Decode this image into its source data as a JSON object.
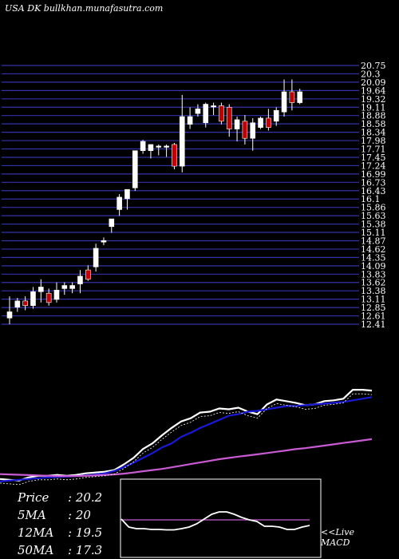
{
  "header": {
    "title": "USA DK bullkhan.munafasutra.com"
  },
  "colors": {
    "background": "#000000",
    "grid": "#3333aa",
    "up": "#ffffff",
    "down": "#c00000",
    "price_line": "#ffffff",
    "ma20": "#ffffff",
    "ma12": "#1a1ad6",
    "ma50": "#c85ad2",
    "macd_line": "#ffffff",
    "macd_signal": "#c85ad2"
  },
  "stats": [
    {
      "label": "Price",
      "value": ": 20.2"
    },
    {
      "label": "5MA",
      "value": ": 20"
    },
    {
      "label": "12MA",
      "value": ": 19.5"
    },
    {
      "label": "50MA",
      "value": ": 17.3"
    }
  ],
  "live": {
    "line1": "<<Live",
    "line2": "MACD"
  },
  "chart_data": [
    {
      "type": "candlestick",
      "title": "USA DK bullkhan.munafasutra.com",
      "ylim": [
        12.4,
        20.75
      ],
      "y_ticks": [
        20.75,
        20.3,
        20.09,
        19.64,
        19.32,
        19.11,
        18.88,
        18.58,
        18.34,
        17.98,
        17.71,
        17.45,
        17.24,
        16.99,
        16.73,
        16.43,
        16.1,
        15.86,
        15.63,
        15.38,
        15.11,
        14.87,
        14.62,
        14.35,
        14.09,
        13.83,
        13.62,
        13.38,
        13.11,
        12.85,
        12.61,
        12.41
      ],
      "candles": [
        {
          "o": 12.6,
          "h": 13.3,
          "l": 12.4,
          "c": 12.8
        },
        {
          "o": 12.95,
          "h": 13.25,
          "l": 12.8,
          "c": 13.15
        },
        {
          "o": 13.15,
          "h": 13.3,
          "l": 12.85,
          "c": 13.0
        },
        {
          "o": 13.0,
          "h": 13.6,
          "l": 12.9,
          "c": 13.45
        },
        {
          "o": 13.45,
          "h": 13.85,
          "l": 13.1,
          "c": 13.6
        },
        {
          "o": 13.4,
          "h": 13.55,
          "l": 13.0,
          "c": 13.1
        },
        {
          "o": 13.2,
          "h": 13.75,
          "l": 13.1,
          "c": 13.5
        },
        {
          "o": 13.55,
          "h": 13.75,
          "l": 13.35,
          "c": 13.65
        },
        {
          "o": 13.55,
          "h": 13.75,
          "l": 13.4,
          "c": 13.65
        },
        {
          "o": 13.7,
          "h": 14.15,
          "l": 13.4,
          "c": 13.95
        },
        {
          "o": 14.15,
          "h": 14.3,
          "l": 13.8,
          "c": 13.85
        },
        {
          "o": 14.25,
          "h": 15.0,
          "l": 14.1,
          "c": 14.85
        },
        {
          "o": 15.05,
          "h": 15.2,
          "l": 14.95,
          "c": 15.1
        },
        {
          "o": 15.55,
          "h": 15.8,
          "l": 15.35,
          "c": 15.8
        },
        {
          "o": 16.1,
          "h": 16.6,
          "l": 15.9,
          "c": 16.5
        },
        {
          "o": 16.45,
          "h": 16.75,
          "l": 16.1,
          "c": 16.75
        },
        {
          "o": 16.8,
          "h": 18.0,
          "l": 16.7,
          "c": 18.0
        },
        {
          "o": 18.0,
          "h": 18.35,
          "l": 17.9,
          "c": 18.3
        },
        {
          "o": 18.0,
          "h": 18.2,
          "l": 17.75,
          "c": 18.2
        },
        {
          "o": 18.15,
          "h": 18.2,
          "l": 17.85,
          "c": 18.15
        },
        {
          "o": 18.15,
          "h": 18.2,
          "l": 17.8,
          "c": 18.15
        },
        {
          "o": 18.2,
          "h": 18.25,
          "l": 17.4,
          "c": 17.5
        },
        {
          "o": 17.5,
          "h": 19.8,
          "l": 17.3,
          "c": 19.1
        },
        {
          "o": 18.85,
          "h": 19.4,
          "l": 18.7,
          "c": 19.1
        },
        {
          "o": 19.2,
          "h": 19.5,
          "l": 19.1,
          "c": 19.35
        },
        {
          "o": 18.9,
          "h": 19.55,
          "l": 18.75,
          "c": 19.5
        },
        {
          "o": 19.45,
          "h": 19.55,
          "l": 19.15,
          "c": 19.45
        },
        {
          "o": 19.45,
          "h": 19.55,
          "l": 18.85,
          "c": 18.95
        },
        {
          "o": 19.4,
          "h": 19.5,
          "l": 18.45,
          "c": 18.7
        },
        {
          "o": 18.7,
          "h": 19.1,
          "l": 18.3,
          "c": 19.0
        },
        {
          "o": 18.95,
          "h": 19.15,
          "l": 18.2,
          "c": 18.4
        },
        {
          "o": 18.4,
          "h": 19.05,
          "l": 18.0,
          "c": 18.9
        },
        {
          "o": 18.75,
          "h": 19.1,
          "l": 18.7,
          "c": 19.05
        },
        {
          "o": 19.05,
          "h": 19.35,
          "l": 18.65,
          "c": 18.75
        },
        {
          "o": 18.95,
          "h": 19.4,
          "l": 18.8,
          "c": 19.3
        },
        {
          "o": 19.25,
          "h": 20.3,
          "l": 19.1,
          "c": 19.9
        },
        {
          "o": 19.9,
          "h": 20.3,
          "l": 19.3,
          "c": 19.55
        },
        {
          "o": 19.55,
          "h": 20.0,
          "l": 19.5,
          "c": 19.9
        }
      ]
    },
    {
      "type": "line",
      "series": [
        {
          "values": [
            14.6,
            14.55,
            14.5,
            14.7,
            14.8,
            14.8,
            14.85,
            14.8,
            14.85,
            14.95,
            15.0,
            15.05,
            15.15,
            15.5,
            15.9,
            16.45,
            16.8,
            17.3,
            17.75,
            18.15,
            18.35,
            18.7,
            18.75,
            18.95,
            18.9,
            19.0,
            18.75,
            18.6,
            19.2,
            19.5,
            19.4,
            19.3,
            19.15,
            19.2,
            19.4,
            19.45,
            19.55,
            20.1,
            20.1,
            20.05
          ]
        },
        {
          "values": [
            14.45,
            14.5,
            14.55,
            14.6,
            14.65,
            14.7,
            14.72,
            14.75,
            14.78,
            14.82,
            14.88,
            14.95,
            15.1,
            15.35,
            15.6,
            15.9,
            16.2,
            16.55,
            16.8,
            17.2,
            17.45,
            17.75,
            18.0,
            18.25,
            18.5,
            18.6,
            18.75,
            18.8,
            18.9,
            19.0,
            19.1,
            19.1,
            19.15,
            19.2,
            19.25,
            19.3,
            19.35,
            19.45,
            19.55,
            19.65
          ]
        },
        {
          "values": [
            14.9,
            14.88,
            14.86,
            14.84,
            14.82,
            14.8,
            14.78,
            14.78,
            14.78,
            14.8,
            14.82,
            14.85,
            14.88,
            14.93,
            15.0,
            15.08,
            15.15,
            15.22,
            15.32,
            15.42,
            15.52,
            15.62,
            15.72,
            15.82,
            15.9,
            15.98,
            16.05,
            16.12,
            16.2,
            16.28,
            16.36,
            16.44,
            16.5,
            16.58,
            16.66,
            16.74,
            16.82,
            16.9,
            16.98,
            17.06
          ]
        }
      ]
    },
    {
      "type": "line",
      "series": [
        {
          "values": [
            0.02,
            -0.18,
            -0.22,
            -0.22,
            -0.24,
            -0.24,
            -0.25,
            -0.25,
            -0.22,
            -0.18,
            -0.1,
            0.02,
            0.14,
            0.2,
            0.2,
            0.14,
            0.06,
            0.0,
            -0.04,
            -0.16,
            -0.16,
            -0.18,
            -0.24,
            -0.24,
            -0.18,
            -0.14
          ]
        },
        {
          "values": [
            0.0,
            0.0,
            0.0,
            0.0,
            0.0,
            0.0,
            0.0,
            0.0,
            0.0,
            0.0,
            0.0,
            0.0,
            0.0,
            0.0,
            0.0,
            0.0,
            0.0,
            0.0,
            0.0,
            0.0,
            0.0,
            0.0,
            0.0,
            0.0,
            0.0,
            0.0
          ]
        }
      ]
    }
  ]
}
